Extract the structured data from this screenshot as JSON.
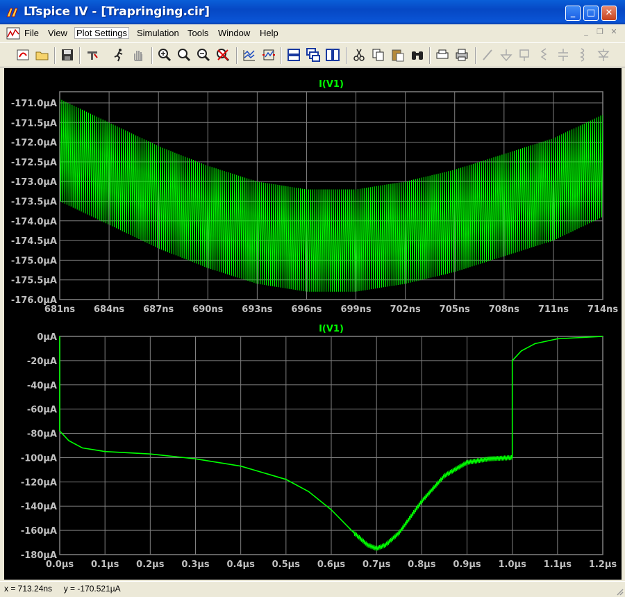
{
  "window": {
    "title": "LTspice IV - [Trapringing.cir]"
  },
  "menu": {
    "items": [
      "File",
      "View",
      "Plot Settings",
      "Simulation",
      "Tools",
      "Window",
      "Help"
    ],
    "active": "Plot Settings"
  },
  "toolbar": {
    "tools": [
      "run-icon",
      "open-icon",
      "save-icon",
      "control-panel-icon",
      "run-simulation-icon",
      "pan-icon",
      "zoom-in-icon",
      "zoom-area-icon",
      "zoom-out-icon",
      "zoom-cancel-icon",
      "autorange-icon",
      "fit-icon",
      "tile-horizontal-icon",
      "cascade-icon",
      "tile-vertical-icon",
      "cut-icon",
      "copy-icon",
      "paste-icon",
      "find-icon",
      "print-preview-icon",
      "print-icon",
      "wire-icon",
      "ground-icon",
      "label-icon",
      "resistor-icon",
      "capacitor-icon",
      "inductor-icon",
      "diode-icon"
    ]
  },
  "accent": {
    "trace": "#00ff00",
    "grid": "#808080",
    "axis_text": "#c0c0c0",
    "title_bar": "#0a5fd8"
  },
  "chart_data": [
    {
      "type": "line",
      "title": "I(V1)",
      "xlabel": "",
      "ylabel": "",
      "x_ticks": [
        "681ns",
        "684ns",
        "687ns",
        "690ns",
        "693ns",
        "696ns",
        "699ns",
        "702ns",
        "705ns",
        "708ns",
        "711ns",
        "714ns"
      ],
      "y_ticks": [
        "-171.0µA",
        "-171.5µA",
        "-172.0µA",
        "-172.5µA",
        "-173.0µA",
        "-173.5µA",
        "-174.0µA",
        "-174.5µA",
        "-175.0µA",
        "-175.5µA",
        "-176.0µA"
      ],
      "xlim_ns": [
        681,
        714
      ],
      "ylim_uA": [
        -176.0,
        -170.7
      ],
      "series": [
        {
          "x_ns": [
            681,
            684,
            687,
            690,
            693,
            696,
            699,
            702,
            705,
            708,
            711,
            714
          ],
          "center_uA": [
            -172.2,
            -172.8,
            -173.4,
            -173.9,
            -174.3,
            -174.5,
            -174.5,
            -174.3,
            -174.0,
            -173.6,
            -173.2,
            -172.6
          ],
          "band_halfwidth_uA": 1.3
        }
      ],
      "grid": true
    },
    {
      "type": "line",
      "title": "I(V1)",
      "xlabel": "",
      "ylabel": "",
      "x_ticks": [
        "0.0µs",
        "0.1µs",
        "0.2µs",
        "0.3µs",
        "0.4µs",
        "0.5µs",
        "0.6µs",
        "0.7µs",
        "0.8µs",
        "0.9µs",
        "1.0µs",
        "1.1µs",
        "1.2µs"
      ],
      "y_ticks": [
        "0µA",
        "-20µA",
        "-40µA",
        "-60µA",
        "-80µA",
        "-100µA",
        "-120µA",
        "-140µA",
        "-160µA",
        "-180µA"
      ],
      "xlim_us": [
        0,
        1.2
      ],
      "ylim_uA": [
        -180,
        0
      ],
      "series": [
        {
          "x_us": [
            0.0,
            0.0,
            0.02,
            0.05,
            0.1,
            0.2,
            0.3,
            0.4,
            0.5,
            0.55,
            0.6,
            0.65,
            0.68,
            0.7,
            0.72,
            0.75,
            0.8,
            0.85,
            0.9,
            0.95,
            1.0,
            1.0,
            1.02,
            1.05,
            1.1,
            1.15,
            1.2
          ],
          "y_uA": [
            0,
            -78,
            -86,
            -92,
            -95,
            -97,
            -101,
            -107,
            -118,
            -128,
            -143,
            -162,
            -172,
            -175,
            -172,
            -162,
            -136,
            -115,
            -104,
            -101,
            -100,
            -20,
            -12,
            -6,
            -2,
            -1,
            0
          ],
          "ringing_band_x_us": [
            0.65,
            1.0
          ]
        }
      ],
      "grid": true
    }
  ],
  "status": {
    "text": "x = 713.24ns     y = -170.521µA"
  }
}
